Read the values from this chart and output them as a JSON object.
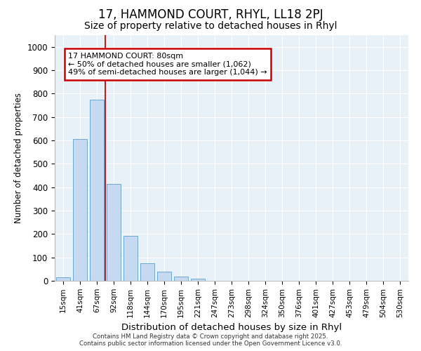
{
  "title1": "17, HAMMOND COURT, RHYL, LL18 2PJ",
  "title2": "Size of property relative to detached houses in Rhyl",
  "xlabel": "Distribution of detached houses by size in Rhyl",
  "ylabel": "Number of detached properties",
  "categories": [
    "15sqm",
    "41sqm",
    "67sqm",
    "92sqm",
    "118sqm",
    "144sqm",
    "170sqm",
    "195sqm",
    "221sqm",
    "247sqm",
    "273sqm",
    "298sqm",
    "324sqm",
    "350sqm",
    "376sqm",
    "401sqm",
    "427sqm",
    "453sqm",
    "479sqm",
    "504sqm",
    "530sqm"
  ],
  "values": [
    15,
    607,
    773,
    413,
    193,
    75,
    40,
    18,
    10,
    0,
    0,
    0,
    0,
    0,
    0,
    0,
    0,
    0,
    0,
    0,
    0
  ],
  "bar_color": "#c6d9f0",
  "bar_edge_color": "#6aaad4",
  "vline_x": 2.5,
  "vline_color": "#cc0000",
  "annotation_title": "17 HAMMOND COURT: 80sqm",
  "annotation_line1": "← 50% of detached houses are smaller (1,062)",
  "annotation_line2": "49% of semi-detached houses are larger (1,044) →",
  "annotation_box_color": "#cc0000",
  "ylim": [
    0,
    1050
  ],
  "yticks": [
    0,
    100,
    200,
    300,
    400,
    500,
    600,
    700,
    800,
    900,
    1000
  ],
  "footer1": "Contains HM Land Registry data © Crown copyright and database right 2025.",
  "footer2": "Contains public sector information licensed under the Open Government Licence v3.0.",
  "background_color": "#ffffff",
  "plot_background": "#e8f0f8",
  "grid_color": "#ffffff",
  "title1_fontsize": 12,
  "title2_fontsize": 10
}
